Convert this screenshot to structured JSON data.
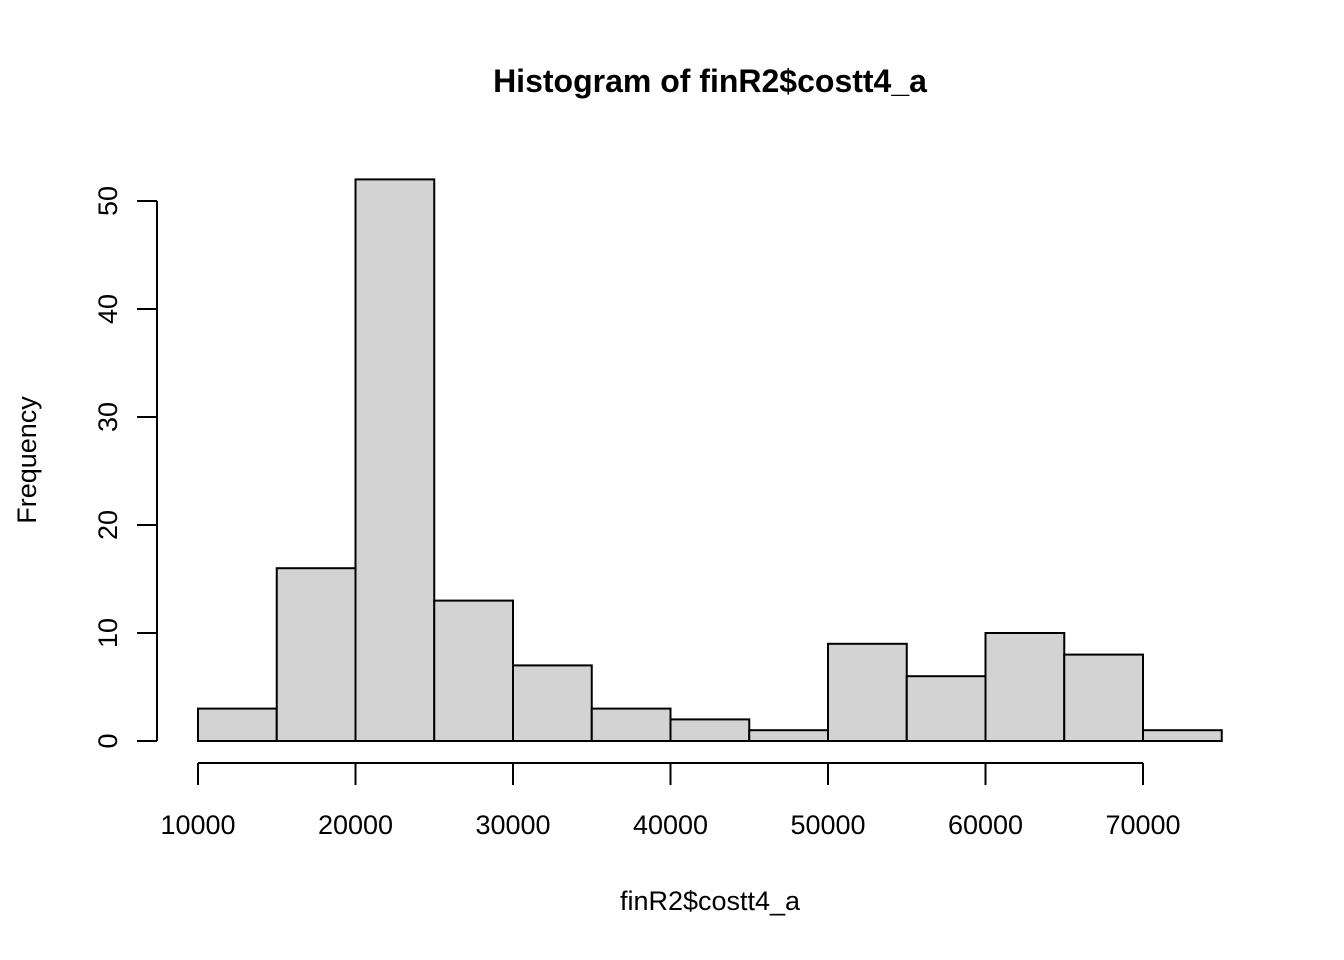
{
  "chart_data": {
    "type": "bar",
    "title": "Histogram of finR2$costt4_a",
    "xlabel": "finR2$costt4_a",
    "ylabel": "Frequency",
    "bin_edges": [
      10000,
      15000,
      20000,
      25000,
      30000,
      35000,
      40000,
      45000,
      50000,
      55000,
      60000,
      65000,
      70000,
      75000
    ],
    "values": [
      3,
      16,
      52,
      13,
      7,
      3,
      2,
      1,
      9,
      6,
      10,
      8,
      1
    ],
    "xlim": [
      10000,
      75000
    ],
    "ylim": [
      0,
      52
    ],
    "x_ticks": [
      10000,
      20000,
      30000,
      40000,
      50000,
      60000,
      70000
    ],
    "y_ticks": [
      0,
      10,
      20,
      30,
      40,
      50
    ],
    "bar_fill": "#d3d3d3",
    "bar_stroke": "#000000",
    "grid": false,
    "legend": "none"
  }
}
